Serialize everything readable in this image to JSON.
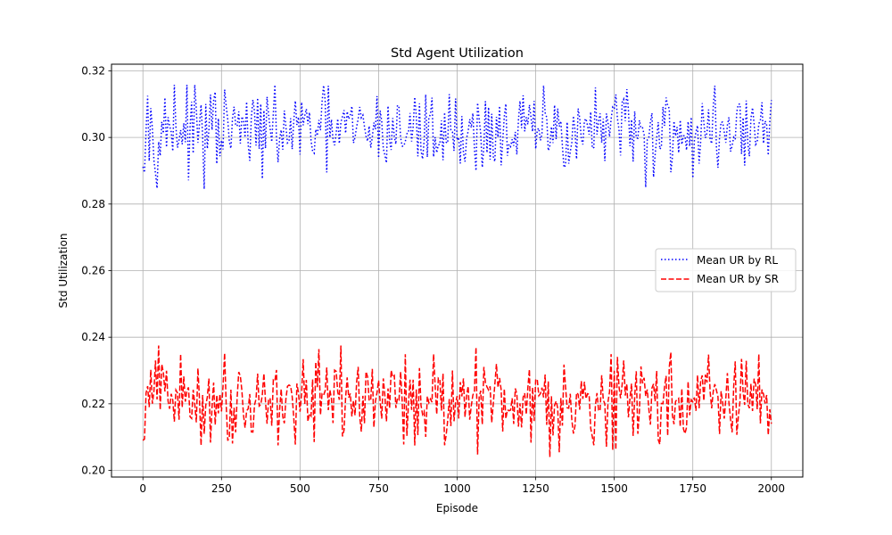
{
  "chart_data": {
    "type": "line",
    "title": "Std Agent Utilization",
    "xlabel": "Episode",
    "ylabel": "Std Utilization",
    "xlim": [
      -100,
      2100
    ],
    "ylim": [
      0.198,
      0.322
    ],
    "xticks": [
      0,
      250,
      500,
      750,
      1000,
      1250,
      1500,
      1750,
      2000
    ],
    "xtick_labels": [
      "0",
      "250",
      "500",
      "750",
      "1000",
      "1250",
      "1500",
      "1750",
      "2000"
    ],
    "yticks": [
      0.2,
      0.22,
      0.24,
      0.26,
      0.28,
      0.3,
      0.32
    ],
    "ytick_labels": [
      "0.20",
      "0.22",
      "0.24",
      "0.26",
      "0.28",
      "0.30",
      "0.32"
    ],
    "grid": true,
    "legend_position": "center-right",
    "x": {
      "start": 0,
      "end": 2000,
      "step": 5
    },
    "series": [
      {
        "name": "Mean UR by RL",
        "color": "#0000ff",
        "line_style": "dotted",
        "mean": 0.302,
        "min": 0.2845,
        "max": 0.3158,
        "extremes": [
          {
            "x": 15,
            "y": 0.3125
          },
          {
            "x": 40,
            "y": 0.2892
          },
          {
            "x": 100,
            "y": 0.3158
          },
          {
            "x": 195,
            "y": 0.2845
          },
          {
            "x": 225,
            "y": 0.3112
          },
          {
            "x": 1060,
            "y": 0.29
          },
          {
            "x": 1540,
            "y": 0.3145
          },
          {
            "x": 1600,
            "y": 0.285
          },
          {
            "x": 1750,
            "y": 0.2878
          }
        ]
      },
      {
        "name": "Mean UR by SR",
        "color": "#ff0000",
        "line_style": "dashed",
        "mean": 0.2215,
        "min": 0.204,
        "max": 0.2375,
        "extremes": [
          {
            "x": 0,
            "y": 0.209
          },
          {
            "x": 50,
            "y": 0.2375
          },
          {
            "x": 185,
            "y": 0.2075
          },
          {
            "x": 545,
            "y": 0.2085
          },
          {
            "x": 1060,
            "y": 0.237
          },
          {
            "x": 1295,
            "y": 0.204
          },
          {
            "x": 1505,
            "y": 0.2062
          },
          {
            "x": 1680,
            "y": 0.2355
          },
          {
            "x": 2000,
            "y": 0.214
          }
        ]
      }
    ]
  }
}
